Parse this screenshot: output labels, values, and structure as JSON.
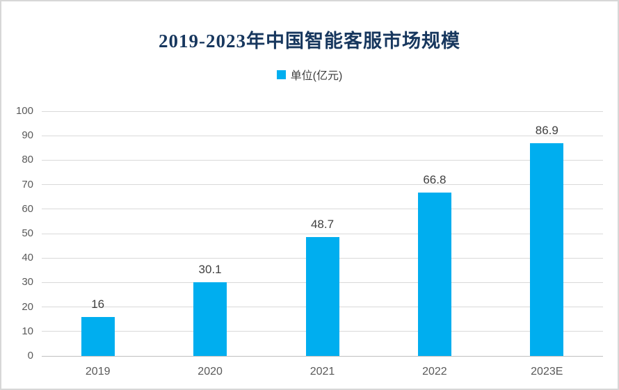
{
  "chart_data": {
    "type": "bar",
    "title": "2019-2023年中国智能客服市场规模",
    "legend": [
      {
        "label": "单位(亿元)",
        "color": "#00aeef"
      }
    ],
    "legend_position": "top",
    "categories": [
      "2019",
      "2020",
      "2021",
      "2022",
      "2023E"
    ],
    "values": [
      16,
      30.1,
      48.7,
      66.8,
      86.9
    ],
    "value_labels": [
      "16",
      "30.1",
      "48.7",
      "66.8",
      "86.9"
    ],
    "xlabel": "",
    "ylabel": "",
    "ylim": [
      0,
      100
    ],
    "yticks": [
      0,
      10,
      20,
      30,
      40,
      50,
      60,
      70,
      80,
      90,
      100
    ],
    "grid": true,
    "bar_color": "#00aeef",
    "colors": {
      "title": "#17375e",
      "axis_labels": "#595959",
      "data_labels": "#404040",
      "gridline": "#d9d9d9",
      "axis_line": "#bfbfbf",
      "background": "#ffffff",
      "frame_border": "#d7d7d7"
    }
  }
}
